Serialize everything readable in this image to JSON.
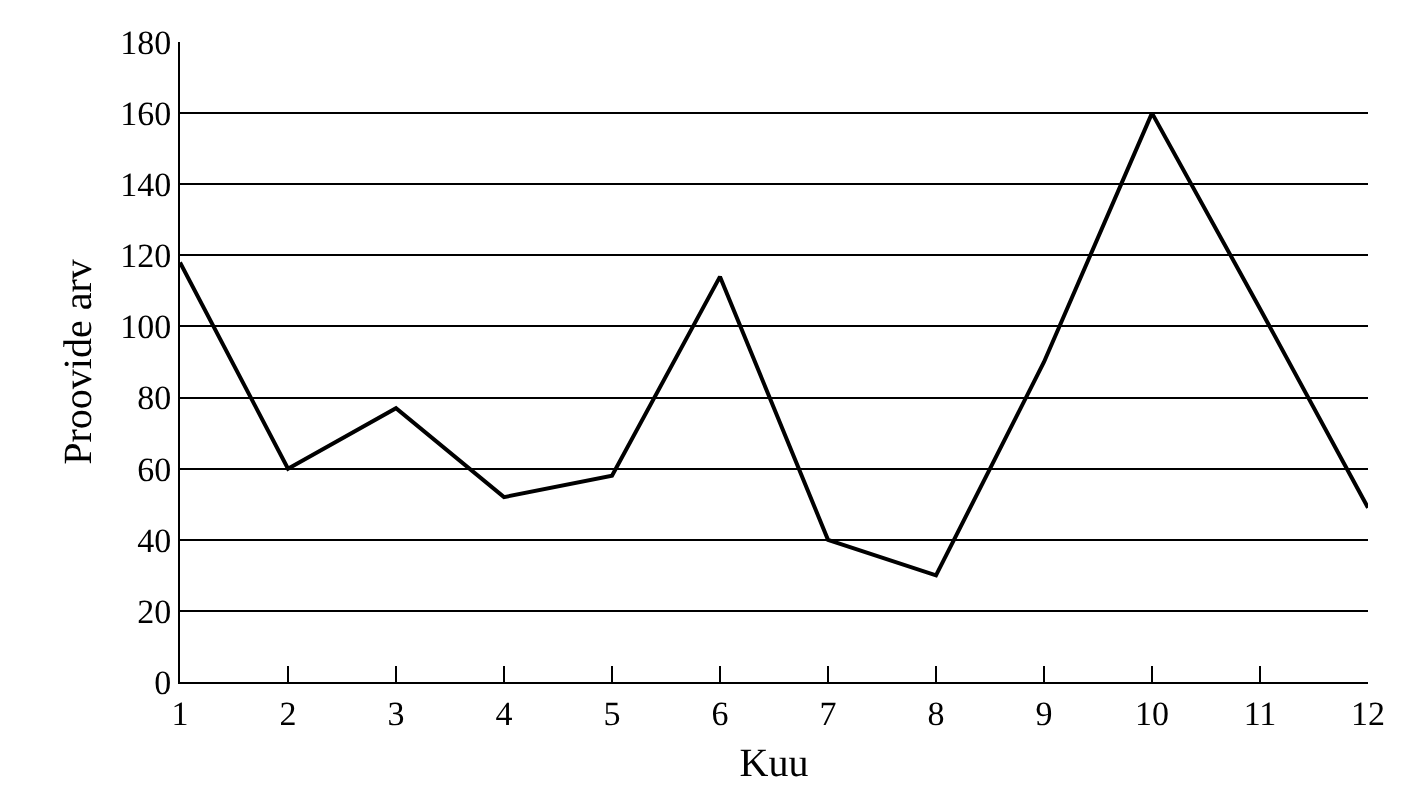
{
  "chart_data": {
    "type": "line",
    "xlabel": "Kuu",
    "ylabel": "Proovide arv",
    "x": [
      1,
      2,
      3,
      4,
      5,
      6,
      7,
      8,
      9,
      10,
      11,
      12
    ],
    "series": [
      {
        "color": "#000000",
        "values": [
          118,
          60,
          77,
          52,
          58,
          114,
          40,
          30,
          90,
          160,
          105,
          49
        ]
      }
    ],
    "xlim": [
      1,
      12
    ],
    "xticks": [
      1,
      2,
      3,
      4,
      5,
      6,
      7,
      8,
      9,
      10,
      11,
      12
    ],
    "ylim": [
      0,
      180
    ],
    "yticks": [
      0,
      20,
      40,
      60,
      80,
      100,
      120,
      140,
      160,
      180
    ],
    "grid": "y",
    "legend": false,
    "marker": "none",
    "line_style": "solid"
  }
}
